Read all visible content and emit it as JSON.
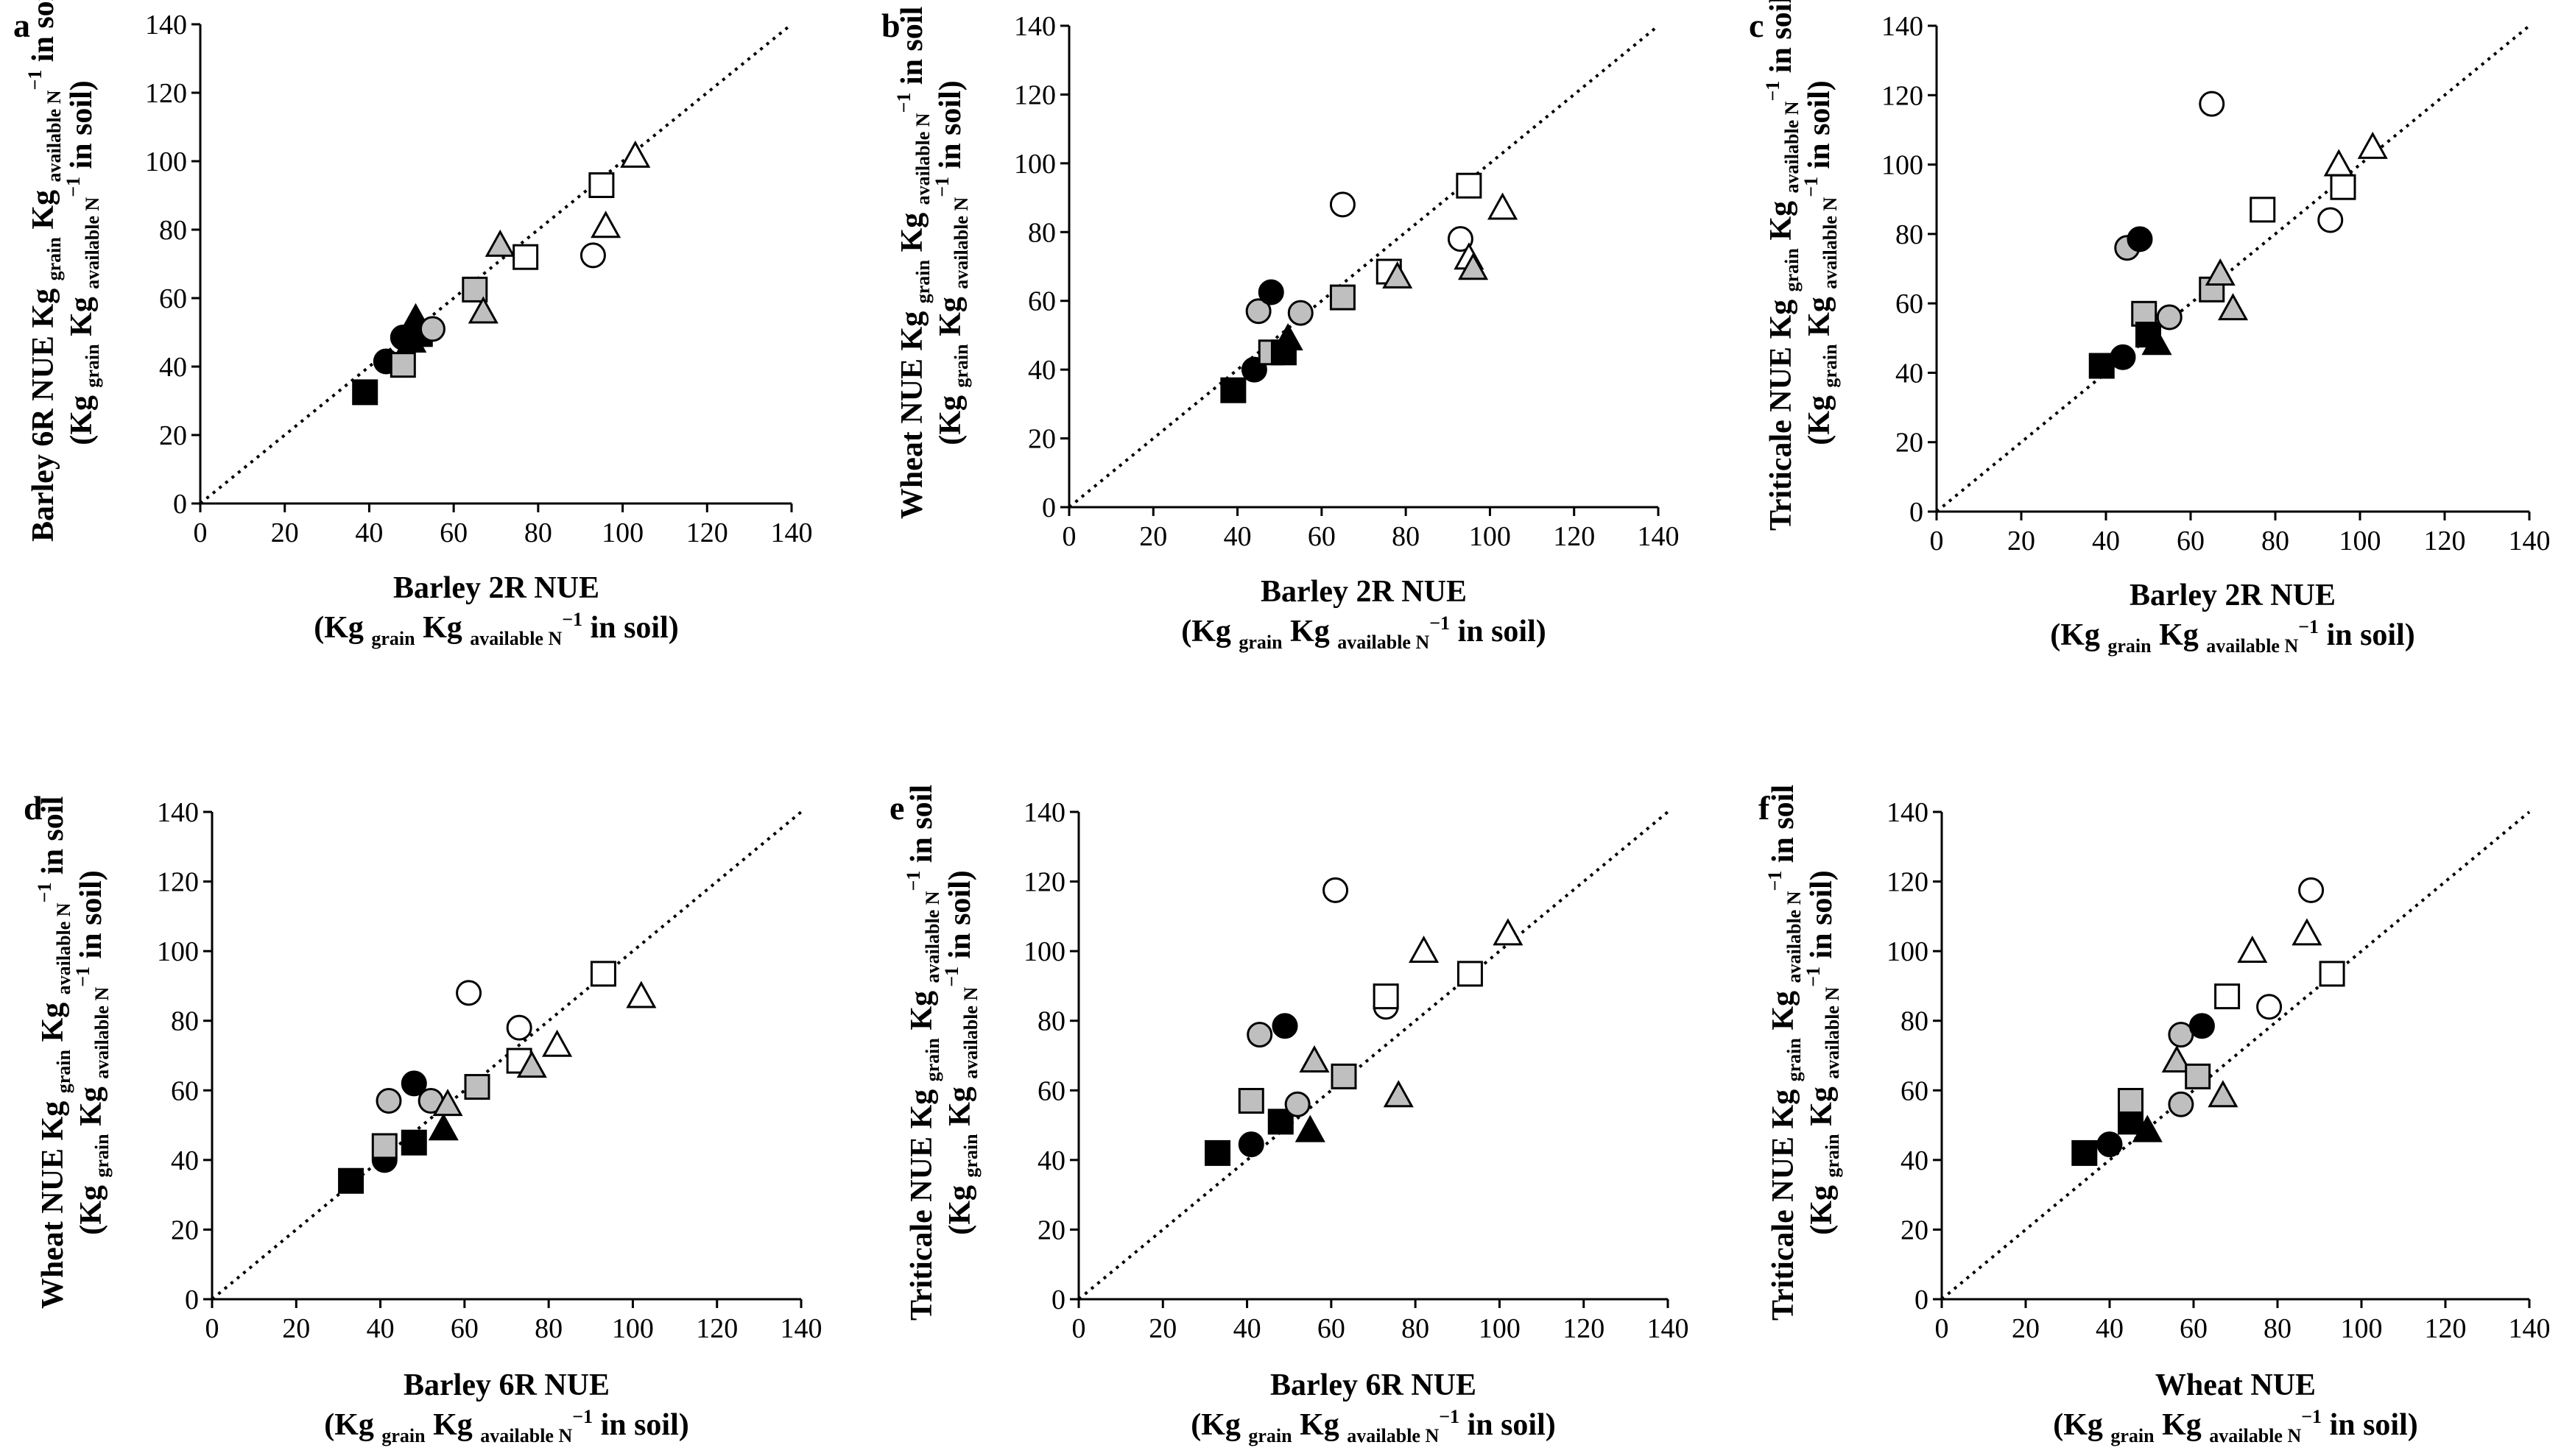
{
  "figure": {
    "colors": {
      "white": "#ffffff",
      "grey": "#bfbfbf",
      "black": "#000000",
      "stroke": "#000000"
    },
    "legend_mapping": {
      "shapes": [
        "circle",
        "square",
        "triangle"
      ],
      "fills": [
        "white",
        "grey",
        "black"
      ]
    }
  },
  "chart_data": [
    {
      "panel": "a",
      "type": "scatter",
      "xlabel": "Barley 2R NUE",
      "ylabel": "Barley 6R NUE",
      "xlim": [
        0,
        140
      ],
      "ylim": [
        0,
        140
      ],
      "xticks": [
        "0",
        "20",
        "40",
        "60",
        "80",
        "100",
        "120",
        "140"
      ],
      "yticks": [
        "0",
        "20",
        "40",
        "60",
        "80",
        "100",
        "120",
        "140"
      ],
      "reference_line": "1:1",
      "points": [
        {
          "x": 39,
          "y": 32.5,
          "shape": "square",
          "fill": "black"
        },
        {
          "x": 44,
          "y": 41.5,
          "shape": "circle",
          "fill": "black"
        },
        {
          "x": 48,
          "y": 40.5,
          "shape": "square",
          "fill": "grey"
        },
        {
          "x": 48,
          "y": 48.5,
          "shape": "circle",
          "fill": "black"
        },
        {
          "x": 50,
          "y": 47.5,
          "shape": "triangle",
          "fill": "black"
        },
        {
          "x": 51,
          "y": 54,
          "shape": "triangle",
          "fill": "black"
        },
        {
          "x": 52,
          "y": 49.5,
          "shape": "square",
          "fill": "black"
        },
        {
          "x": 55,
          "y": 51,
          "shape": "circle",
          "fill": "grey"
        },
        {
          "x": 65,
          "y": 62.5,
          "shape": "square",
          "fill": "grey"
        },
        {
          "x": 67,
          "y": 56,
          "shape": "triangle",
          "fill": "grey"
        },
        {
          "x": 71,
          "y": 75.5,
          "shape": "triangle",
          "fill": "grey"
        },
        {
          "x": 77,
          "y": 72,
          "shape": "square",
          "fill": "white"
        },
        {
          "x": 93,
          "y": 72.5,
          "shape": "circle",
          "fill": "white"
        },
        {
          "x": 95,
          "y": 93,
          "shape": "square",
          "fill": "white"
        },
        {
          "x": 96,
          "y": 81,
          "shape": "triangle",
          "fill": "white"
        },
        {
          "x": 103,
          "y": 101.5,
          "shape": "triangle",
          "fill": "white"
        }
      ]
    },
    {
      "panel": "b",
      "type": "scatter",
      "xlabel": "Barley 2R NUE",
      "ylabel": "Wheat  NUE",
      "xlim": [
        0,
        140
      ],
      "ylim": [
        0,
        140
      ],
      "xticks": [
        "0",
        "20",
        "40",
        "60",
        "80",
        "100",
        "120",
        "140"
      ],
      "yticks": [
        "0",
        "20",
        "40",
        "60",
        "80",
        "100",
        "120",
        "140"
      ],
      "reference_line": "1:1",
      "points": [
        {
          "x": 39,
          "y": 34,
          "shape": "square",
          "fill": "black"
        },
        {
          "x": 44,
          "y": 40,
          "shape": "circle",
          "fill": "black"
        },
        {
          "x": 45,
          "y": 57,
          "shape": "circle",
          "fill": "grey"
        },
        {
          "x": 48,
          "y": 62.5,
          "shape": "circle",
          "fill": "black"
        },
        {
          "x": 48,
          "y": 45,
          "shape": "square",
          "fill": "grey"
        },
        {
          "x": 51,
          "y": 45,
          "shape": "square",
          "fill": "black"
        },
        {
          "x": 52,
          "y": 49,
          "shape": "triangle",
          "fill": "black"
        },
        {
          "x": 55,
          "y": 56.5,
          "shape": "circle",
          "fill": "grey"
        },
        {
          "x": 65,
          "y": 61,
          "shape": "square",
          "fill": "grey"
        },
        {
          "x": 65,
          "y": 88,
          "shape": "circle",
          "fill": "white"
        },
        {
          "x": 76,
          "y": 68.5,
          "shape": "square",
          "fill": "white"
        },
        {
          "x": 78,
          "y": 67,
          "shape": "triangle",
          "fill": "grey"
        },
        {
          "x": 93,
          "y": 78,
          "shape": "circle",
          "fill": "white"
        },
        {
          "x": 95,
          "y": 72.5,
          "shape": "triangle",
          "fill": "white"
        },
        {
          "x": 96,
          "y": 69.5,
          "shape": "triangle",
          "fill": "grey"
        },
        {
          "x": 95,
          "y": 93.5,
          "shape": "square",
          "fill": "white"
        },
        {
          "x": 103,
          "y": 87,
          "shape": "triangle",
          "fill": "white"
        }
      ]
    },
    {
      "panel": "c",
      "type": "scatter",
      "xlabel": "Barley 2R NUE",
      "ylabel": "Triticale  NUE",
      "xlim": [
        0,
        140
      ],
      "ylim": [
        0,
        140
      ],
      "xticks": [
        "0",
        "20",
        "40",
        "60",
        "80",
        "100",
        "120",
        "140"
      ],
      "yticks": [
        "0",
        "20",
        "40",
        "60",
        "80",
        "100",
        "120",
        "140"
      ],
      "reference_line": "1:1",
      "points": [
        {
          "x": 39,
          "y": 42,
          "shape": "square",
          "fill": "black"
        },
        {
          "x": 44,
          "y": 44.5,
          "shape": "circle",
          "fill": "black"
        },
        {
          "x": 45,
          "y": 76,
          "shape": "circle",
          "fill": "grey"
        },
        {
          "x": 48,
          "y": 78.5,
          "shape": "circle",
          "fill": "black"
        },
        {
          "x": 49,
          "y": 57,
          "shape": "square",
          "fill": "grey"
        },
        {
          "x": 50,
          "y": 51,
          "shape": "square",
          "fill": "black"
        },
        {
          "x": 52,
          "y": 48.5,
          "shape": "triangle",
          "fill": "black"
        },
        {
          "x": 55,
          "y": 56,
          "shape": "circle",
          "fill": "grey"
        },
        {
          "x": 65,
          "y": 64,
          "shape": "square",
          "fill": "grey"
        },
        {
          "x": 65,
          "y": 117.5,
          "shape": "circle",
          "fill": "white"
        },
        {
          "x": 67,
          "y": 68.5,
          "shape": "triangle",
          "fill": "grey"
        },
        {
          "x": 70,
          "y": 58.5,
          "shape": "triangle",
          "fill": "grey"
        },
        {
          "x": 77,
          "y": 87,
          "shape": "square",
          "fill": "white"
        },
        {
          "x": 93,
          "y": 84,
          "shape": "circle",
          "fill": "white"
        },
        {
          "x": 95,
          "y": 100,
          "shape": "triangle",
          "fill": "white"
        },
        {
          "x": 96,
          "y": 93.5,
          "shape": "square",
          "fill": "white"
        },
        {
          "x": 103,
          "y": 105,
          "shape": "triangle",
          "fill": "white"
        }
      ]
    },
    {
      "panel": "d",
      "type": "scatter",
      "xlabel": "Barley 6R NUE",
      "ylabel": "Wheat  NUE",
      "xlim": [
        0,
        140
      ],
      "ylim": [
        0,
        140
      ],
      "xticks": [
        "0",
        "20",
        "40",
        "60",
        "80",
        "100",
        "120",
        "140"
      ],
      "yticks": [
        "0",
        "20",
        "40",
        "60",
        "80",
        "100",
        "120",
        "140"
      ],
      "reference_line": "1:1",
      "points": [
        {
          "x": 33,
          "y": 34,
          "shape": "square",
          "fill": "black"
        },
        {
          "x": 41,
          "y": 40,
          "shape": "circle",
          "fill": "black"
        },
        {
          "x": 41,
          "y": 44,
          "shape": "square",
          "fill": "grey"
        },
        {
          "x": 42,
          "y": 57,
          "shape": "circle",
          "fill": "grey"
        },
        {
          "x": 48,
          "y": 62,
          "shape": "circle",
          "fill": "black"
        },
        {
          "x": 48,
          "y": 45,
          "shape": "square",
          "fill": "black"
        },
        {
          "x": 52,
          "y": 57,
          "shape": "circle",
          "fill": "grey"
        },
        {
          "x": 55,
          "y": 49,
          "shape": "triangle",
          "fill": "black"
        },
        {
          "x": 56,
          "y": 56,
          "shape": "triangle",
          "fill": "grey"
        },
        {
          "x": 61,
          "y": 88,
          "shape": "circle",
          "fill": "white"
        },
        {
          "x": 63,
          "y": 61,
          "shape": "square",
          "fill": "grey"
        },
        {
          "x": 73,
          "y": 78,
          "shape": "circle",
          "fill": "white"
        },
        {
          "x": 73,
          "y": 68.5,
          "shape": "square",
          "fill": "white"
        },
        {
          "x": 76,
          "y": 67,
          "shape": "triangle",
          "fill": "grey"
        },
        {
          "x": 82,
          "y": 73,
          "shape": "triangle",
          "fill": "white"
        },
        {
          "x": 93,
          "y": 93.5,
          "shape": "square",
          "fill": "white"
        },
        {
          "x": 102,
          "y": 87,
          "shape": "triangle",
          "fill": "white"
        }
      ]
    },
    {
      "panel": "e",
      "type": "scatter",
      "xlabel": "Barley 6R NUE",
      "ylabel": "Triticale    NUE",
      "xlim": [
        0,
        140
      ],
      "ylim": [
        0,
        140
      ],
      "xticks": [
        "0",
        "20",
        "40",
        "60",
        "80",
        "100",
        "120",
        "140"
      ],
      "yticks": [
        "0",
        "20",
        "40",
        "60",
        "80",
        "100",
        "120",
        "140"
      ],
      "reference_line": "1:1",
      "points": [
        {
          "x": 33,
          "y": 42,
          "shape": "square",
          "fill": "black"
        },
        {
          "x": 41,
          "y": 57,
          "shape": "square",
          "fill": "grey"
        },
        {
          "x": 41,
          "y": 44.5,
          "shape": "circle",
          "fill": "black"
        },
        {
          "x": 43,
          "y": 76,
          "shape": "circle",
          "fill": "grey"
        },
        {
          "x": 48,
          "y": 51,
          "shape": "square",
          "fill": "black"
        },
        {
          "x": 49,
          "y": 78.5,
          "shape": "circle",
          "fill": "black"
        },
        {
          "x": 52,
          "y": 56,
          "shape": "circle",
          "fill": "grey"
        },
        {
          "x": 55,
          "y": 48.5,
          "shape": "triangle",
          "fill": "black"
        },
        {
          "x": 56,
          "y": 68.5,
          "shape": "triangle",
          "fill": "grey"
        },
        {
          "x": 61,
          "y": 117.5,
          "shape": "circle",
          "fill": "white"
        },
        {
          "x": 63,
          "y": 64,
          "shape": "square",
          "fill": "grey"
        },
        {
          "x": 73,
          "y": 84,
          "shape": "circle",
          "fill": "white"
        },
        {
          "x": 73,
          "y": 87,
          "shape": "square",
          "fill": "white"
        },
        {
          "x": 76,
          "y": 58.5,
          "shape": "triangle",
          "fill": "grey"
        },
        {
          "x": 82,
          "y": 100,
          "shape": "triangle",
          "fill": "white"
        },
        {
          "x": 93,
          "y": 93.5,
          "shape": "square",
          "fill": "white"
        },
        {
          "x": 102,
          "y": 105,
          "shape": "triangle",
          "fill": "white"
        }
      ]
    },
    {
      "panel": "f",
      "type": "scatter",
      "xlabel": "Wheat NUE",
      "ylabel": "Triticale  NUE",
      "xlim": [
        0,
        140
      ],
      "ylim": [
        0,
        140
      ],
      "xticks": [
        "0",
        "20",
        "40",
        "60",
        "80",
        "100",
        "120",
        "140"
      ],
      "yticks": [
        "0",
        "20",
        "40",
        "60",
        "80",
        "100",
        "120",
        "140"
      ],
      "reference_line": "1:1",
      "points": [
        {
          "x": 34,
          "y": 42,
          "shape": "square",
          "fill": "black"
        },
        {
          "x": 40,
          "y": 44.5,
          "shape": "circle",
          "fill": "black"
        },
        {
          "x": 45,
          "y": 51,
          "shape": "square",
          "fill": "black"
        },
        {
          "x": 45,
          "y": 57,
          "shape": "square",
          "fill": "grey"
        },
        {
          "x": 49,
          "y": 48.5,
          "shape": "triangle",
          "fill": "black"
        },
        {
          "x": 56,
          "y": 68.5,
          "shape": "triangle",
          "fill": "grey"
        },
        {
          "x": 57,
          "y": 56,
          "shape": "circle",
          "fill": "grey"
        },
        {
          "x": 57,
          "y": 76,
          "shape": "circle",
          "fill": "grey"
        },
        {
          "x": 61,
          "y": 64,
          "shape": "square",
          "fill": "grey"
        },
        {
          "x": 62,
          "y": 78.5,
          "shape": "circle",
          "fill": "black"
        },
        {
          "x": 67,
          "y": 58.5,
          "shape": "triangle",
          "fill": "grey"
        },
        {
          "x": 68,
          "y": 87,
          "shape": "square",
          "fill": "white"
        },
        {
          "x": 74,
          "y": 100,
          "shape": "triangle",
          "fill": "white"
        },
        {
          "x": 78,
          "y": 84,
          "shape": "circle",
          "fill": "white"
        },
        {
          "x": 87,
          "y": 105,
          "shape": "triangle",
          "fill": "white"
        },
        {
          "x": 88,
          "y": 117.5,
          "shape": "circle",
          "fill": "white"
        },
        {
          "x": 93,
          "y": 93.5,
          "shape": "square",
          "fill": "white"
        }
      ]
    }
  ],
  "units": {
    "kg": "Kg",
    "grain": "grain",
    "available_n": "available N",
    "superscript": "−1",
    "in_soil": "in soil",
    "open_paren": "(",
    "close_paren": ")"
  }
}
